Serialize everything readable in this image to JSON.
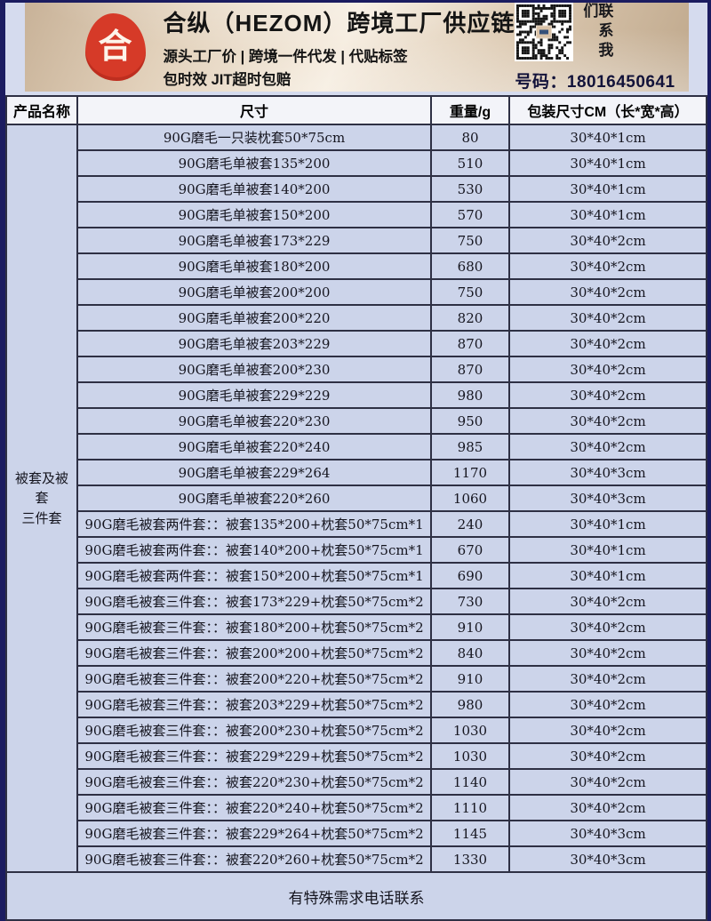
{
  "banner": {
    "logo_char": "合",
    "title": "合纵（HEZOM）跨境工厂供应链",
    "tagline_line1": "源头工厂价 | 跨境一件代发 | 代贴标签",
    "tagline_line2": "包时效 JIT超时包赔",
    "contact_vertical": "联系我们",
    "phone_line": "号码：18016450641",
    "colors": {
      "logo_red": "#d63a28",
      "banner_text": "#141414"
    }
  },
  "table": {
    "headers": [
      "产品名称",
      "尺寸",
      "重量/g",
      "包装尺寸CM（长*宽*高）"
    ],
    "category_label": "被套及被套三件套",
    "category_label_lines": [
      "被套及被套",
      "三件套"
    ],
    "rows": [
      {
        "size": "90G磨毛一只装枕套50*75cm",
        "weight": "80",
        "pack": "30*40*1cm"
      },
      {
        "size": "90G磨毛单被套135*200",
        "weight": "510",
        "pack": "30*40*1cm"
      },
      {
        "size": "90G磨毛单被套140*200",
        "weight": "530",
        "pack": "30*40*1cm"
      },
      {
        "size": "90G磨毛单被套150*200",
        "weight": "570",
        "pack": "30*40*1cm"
      },
      {
        "size": "90G磨毛单被套173*229",
        "weight": "750",
        "pack": "30*40*2cm"
      },
      {
        "size": "90G磨毛单被套180*200",
        "weight": "680",
        "pack": "30*40*2cm"
      },
      {
        "size": "90G磨毛单被套200*200",
        "weight": "750",
        "pack": "30*40*2cm"
      },
      {
        "size": "90G磨毛单被套200*220",
        "weight": "820",
        "pack": "30*40*2cm"
      },
      {
        "size": "90G磨毛单被套203*229",
        "weight": "870",
        "pack": "30*40*2cm"
      },
      {
        "size": "90G磨毛单被套200*230",
        "weight": "870",
        "pack": "30*40*2cm"
      },
      {
        "size": "90G磨毛单被套229*229",
        "weight": "980",
        "pack": "30*40*2cm"
      },
      {
        "size": "90G磨毛单被套220*230",
        "weight": "950",
        "pack": "30*40*2cm"
      },
      {
        "size": "90G磨毛单被套220*240",
        "weight": "985",
        "pack": "30*40*2cm"
      },
      {
        "size": "90G磨毛单被套229*264",
        "weight": "1170",
        "pack": "30*40*3cm"
      },
      {
        "size": "90G磨毛单被套220*260",
        "weight": "1060",
        "pack": "30*40*3cm"
      },
      {
        "size": "90G磨毛被套两件套：：被套135*200+枕套50*75cm*1",
        "weight": "240",
        "pack": "30*40*1cm"
      },
      {
        "size": "90G磨毛被套两件套：：被套140*200+枕套50*75cm*1",
        "weight": "670",
        "pack": "30*40*1cm"
      },
      {
        "size": "90G磨毛被套两件套：：被套150*200+枕套50*75cm*1",
        "weight": "690",
        "pack": "30*40*1cm"
      },
      {
        "size": "90G磨毛被套三件套：：被套173*229+枕套50*75cm*2",
        "weight": "730",
        "pack": "30*40*2cm"
      },
      {
        "size": "90G磨毛被套三件套：：被套180*200+枕套50*75cm*2",
        "weight": "910",
        "pack": "30*40*2cm"
      },
      {
        "size": "90G磨毛被套三件套：：被套200*200+枕套50*75cm*2",
        "weight": "840",
        "pack": "30*40*2cm"
      },
      {
        "size": "90G磨毛被套三件套：：被套200*220+枕套50*75cm*2",
        "weight": "910",
        "pack": "30*40*2cm"
      },
      {
        "size": "90G磨毛被套三件套：：被套203*229+枕套50*75cm*2",
        "weight": "980",
        "pack": "30*40*2cm"
      },
      {
        "size": "90G磨毛被套三件套：：被套200*230+枕套50*75cm*2",
        "weight": "1030",
        "pack": "30*40*2cm"
      },
      {
        "size": "90G磨毛被套三件套：：被套229*229+枕套50*75cm*2",
        "weight": "1030",
        "pack": "30*40*2cm"
      },
      {
        "size": "90G磨毛被套三件套：：被套220*230+枕套50*75cm*2",
        "weight": "1140",
        "pack": "30*40*2cm"
      },
      {
        "size": "90G磨毛被套三件套：：被套220*240+枕套50*75cm*2",
        "weight": "1110",
        "pack": "30*40*2cm"
      },
      {
        "size": "90G磨毛被套三件套：：被套229*264+枕套50*75cm*2",
        "weight": "1145",
        "pack": "30*40*3cm"
      },
      {
        "size": "90G磨毛被套三件套：：被套220*260+枕套50*75cm*2",
        "weight": "1330",
        "pack": "30*40*3cm"
      }
    ],
    "footer_note": "有特殊需求电话联系"
  },
  "colors": {
    "frame_navy": "#1b1c60",
    "row_fill": "#ccd4ea",
    "header_fill": "#f3f4f9",
    "border": "#2e3044"
  }
}
